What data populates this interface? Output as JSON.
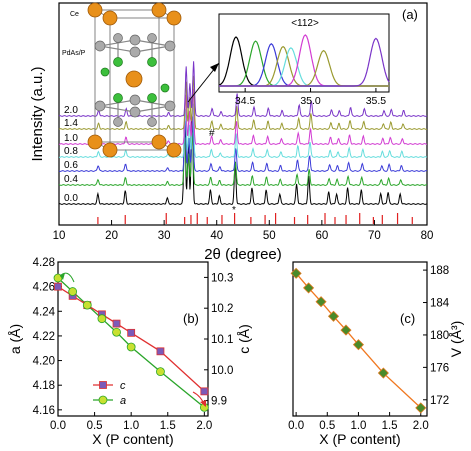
{
  "chart_data": [
    {
      "panel": "(a)",
      "type": "line",
      "xlabel": "2θ (degree)",
      "ylabel": "Intensity (a.u.)",
      "xlim": [
        10,
        80
      ],
      "xticks": [
        10,
        20,
        30,
        40,
        50,
        60,
        70,
        80
      ],
      "series": [
        {
          "name": "0.0",
          "color": "#000000"
        },
        {
          "name": "0.4",
          "color": "#2aa52a"
        },
        {
          "name": "0.6",
          "color": "#3b3bd8"
        },
        {
          "name": "0.8",
          "color": "#66dddd"
        },
        {
          "name": "1.0",
          "color": "#d23cd2"
        },
        {
          "name": "1.4",
          "color": "#9a9a30"
        },
        {
          "name": "2.0",
          "color": "#7a35c8"
        }
      ],
      "peaks": [
        17.4,
        22.6,
        30.6,
        33.9,
        34.6,
        35.3,
        38.8,
        40.5,
        43.5,
        46.7,
        49.4,
        52.0,
        55.2,
        57.5,
        61.3,
        62.8,
        64.9,
        67.5,
        71.2,
        72.6,
        74.9
      ],
      "reference_ticks": [
        17.4,
        22.6,
        30.4,
        33.9,
        35.1,
        36.3,
        38.2,
        41.0,
        43.4,
        46.5,
        49.2,
        51.2,
        54.8,
        57.3,
        60.6,
        62.5,
        64.6,
        67.2,
        69.8,
        71.5,
        74.4,
        77.2
      ],
      "annotations": [
        "#",
        "*"
      ],
      "inset_structure": {
        "labels": [
          "Ce",
          "PdAs/P"
        ]
      },
      "inset_peaks": {
        "title": "<112>",
        "xlim": [
          34.3,
          35.6
        ],
        "xticks": [
          34.5,
          35.0,
          35.5
        ],
        "peak_positions": [
          34.43,
          34.58,
          34.7,
          34.79,
          34.85,
          34.96,
          35.1,
          35.5
        ]
      }
    },
    {
      "panel": "(b)",
      "type": "line",
      "xlabel": "X (P content)",
      "ylabel_left": "a (Å)",
      "ylabel_right": "c (Å)",
      "xlim": [
        0.0,
        2.05
      ],
      "xticks": [
        0.0,
        0.5,
        1.0,
        1.5,
        2.0
      ],
      "ylim_left": [
        4.155,
        4.28
      ],
      "yticks_left": [
        4.16,
        4.18,
        4.2,
        4.22,
        4.24,
        4.26,
        4.28
      ],
      "ylim_right": [
        9.85,
        10.35
      ],
      "yticks_right": [
        9.9,
        10.0,
        10.1,
        10.2,
        10.3
      ],
      "x": [
        0.0,
        0.2,
        0.4,
        0.6,
        0.8,
        1.0,
        1.4,
        2.0
      ],
      "series": [
        {
          "name": "c",
          "axis": "right",
          "color": "#e03030",
          "marker": "square",
          "marker_color": "#7b5ab8",
          "values": [
            10.27,
            10.24,
            10.21,
            10.18,
            10.15,
            10.12,
            10.06,
            9.93
          ]
        },
        {
          "name": "a",
          "axis": "left",
          "color": "#2aa52a",
          "marker": "circle",
          "marker_color": "#c8e030",
          "values": [
            4.267,
            4.256,
            4.245,
            4.234,
            4.223,
            4.211,
            4.191,
            4.162
          ]
        }
      ],
      "legend": "lower-left"
    },
    {
      "panel": "(c)",
      "type": "line",
      "xlabel": "X (P content)",
      "ylabel_right": "V (Å³)",
      "xlim": [
        -0.05,
        2.1
      ],
      "xticks": [
        0.0,
        0.5,
        1.0,
        1.5,
        2.0
      ],
      "ylim": [
        170,
        189
      ],
      "yticks": [
        172,
        176,
        180,
        184,
        188
      ],
      "x": [
        0.0,
        0.2,
        0.4,
        0.6,
        0.8,
        1.0,
        1.4,
        2.0
      ],
      "series": [
        {
          "name": "V",
          "color": "#f07820",
          "marker": "diamond",
          "marker_color": "#4a8a2a",
          "values": [
            187.6,
            185.8,
            184.1,
            182.3,
            180.6,
            178.8,
            175.3,
            171.0
          ]
        }
      ]
    }
  ]
}
